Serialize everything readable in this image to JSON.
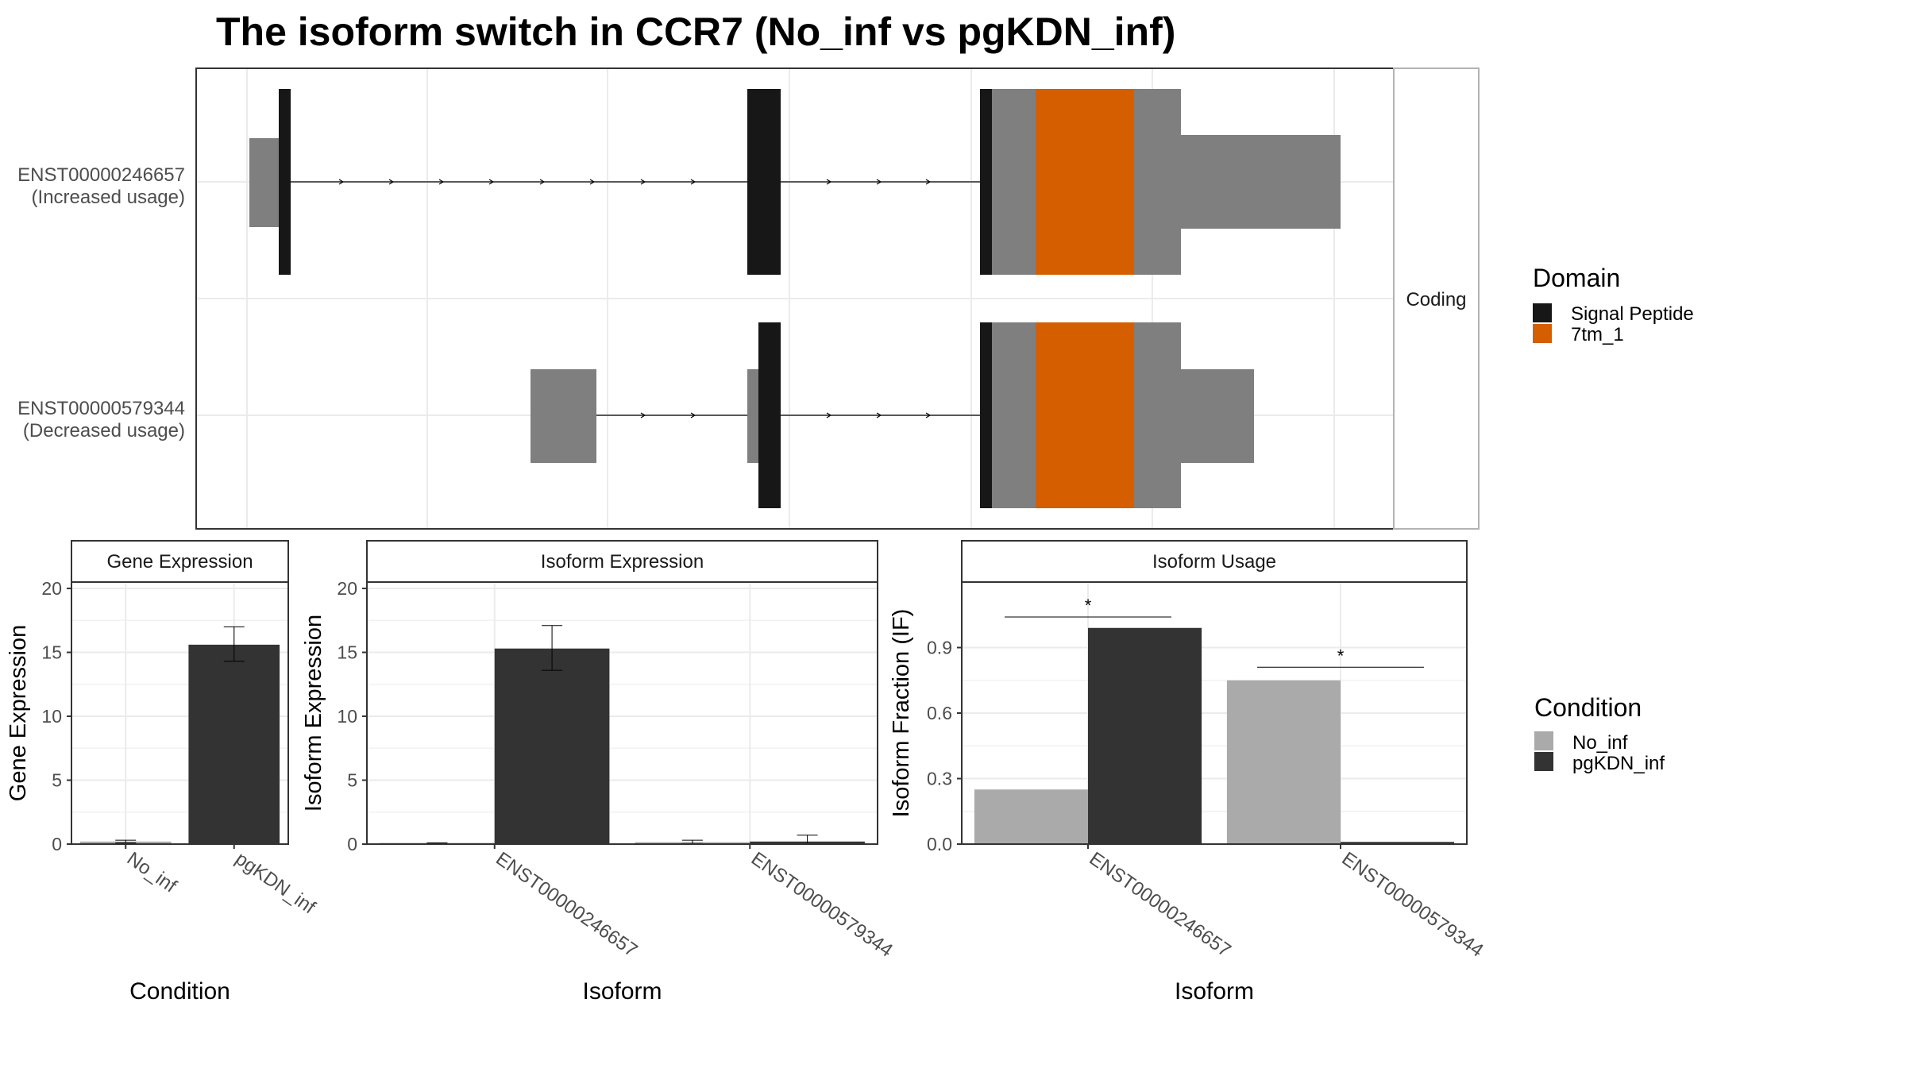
{
  "title": "The isoform switch in CCR7 (No_inf vs pgKDN_inf)",
  "colors": {
    "signal_peptide": "#171717",
    "domain_7tm": "#D55E00",
    "exon": "#7F7F7F",
    "no_inf": "#AAAAAA",
    "pgkdn_inf": "#333333",
    "grid": "#EBEBEB",
    "strip_border": "#B3B3B3"
  },
  "structure": {
    "strip_label": "Coding",
    "transcripts": [
      {
        "id": "ENST00000246657",
        "usage": "(Increased usage)"
      },
      {
        "id": "ENST00000579344",
        "usage": "(Decreased usage)"
      }
    ],
    "legend": {
      "title": "Domain",
      "items": [
        {
          "label": "Signal Peptide",
          "color": "#171717"
        },
        {
          "label": "7tm_1",
          "color": "#D55E00"
        }
      ]
    }
  },
  "condition_legend": {
    "title": "Condition",
    "items": [
      {
        "label": "No_inf",
        "color": "#AAAAAA"
      },
      {
        "label": "pgKDN_inf",
        "color": "#333333"
      }
    ]
  },
  "chart_data": [
    {
      "type": "bar",
      "strip": "Gene Expression",
      "ylabel": "Gene Expression",
      "xlabel": "Condition",
      "ylim": [
        0,
        20.5
      ],
      "yticks": [
        0,
        5,
        10,
        15,
        20
      ],
      "categories": [
        "No_inf",
        "pgKDN_inf"
      ],
      "values": [
        0.2,
        15.6
      ],
      "errors": [
        [
          0.1,
          0.3
        ],
        [
          14.3,
          17.0
        ]
      ],
      "colors": [
        "#AAAAAA",
        "#333333"
      ]
    },
    {
      "type": "bar",
      "strip": "Isoform Expression",
      "ylabel": "Isoform Expression",
      "xlabel": "Isoform",
      "ylim": [
        0,
        20.5
      ],
      "yticks": [
        0,
        5,
        10,
        15,
        20
      ],
      "categories": [
        "ENST00000246657",
        "ENST00000579344"
      ],
      "series": [
        {
          "name": "No_inf",
          "values": [
            0.05,
            0.15
          ],
          "errors": [
            [
              0.0,
              0.1
            ],
            [
              0.05,
              0.3
            ]
          ]
        },
        {
          "name": "pgKDN_inf",
          "values": [
            15.3,
            0.2
          ],
          "errors": [
            [
              13.6,
              17.1
            ],
            [
              0.0,
              0.7
            ]
          ]
        }
      ]
    },
    {
      "type": "bar",
      "strip": "Isoform Usage",
      "ylabel": "Isoform Fraction (IF)",
      "xlabel": "Isoform",
      "ylim": [
        0,
        1.2
      ],
      "yticks": [
        0.0,
        0.3,
        0.6,
        0.9
      ],
      "ytick_labels": [
        "0.0",
        "0.3",
        "0.6",
        "0.9"
      ],
      "categories": [
        "ENST00000246657",
        "ENST00000579344"
      ],
      "series": [
        {
          "name": "No_inf",
          "values": [
            0.25,
            0.75
          ]
        },
        {
          "name": "pgKDN_inf",
          "values": [
            0.99,
            0.01
          ]
        }
      ],
      "significance": [
        {
          "category": "ENST00000246657",
          "label": "*",
          "y": 1.04
        },
        {
          "category": "ENST00000579344",
          "label": "*",
          "y": 0.81
        }
      ]
    }
  ]
}
